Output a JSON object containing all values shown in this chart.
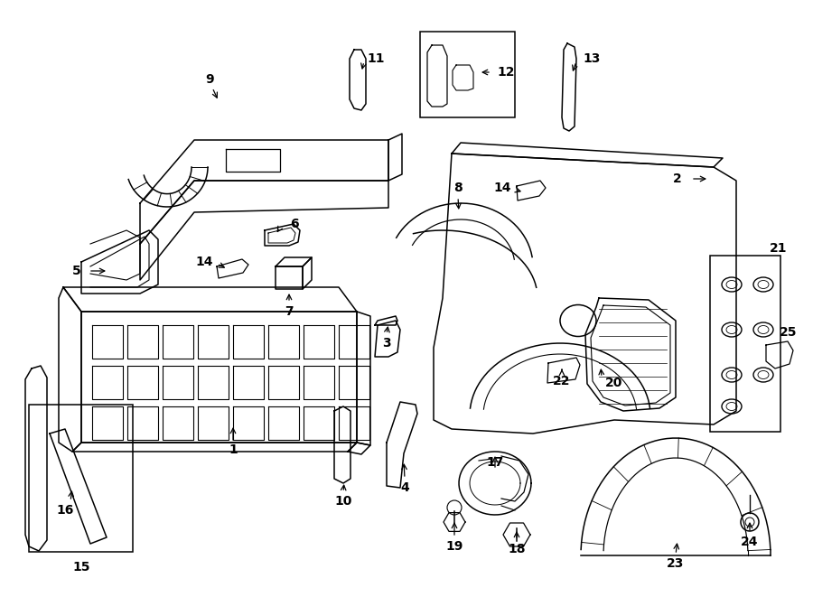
{
  "bg_color": "#ffffff",
  "line_color": "#000000",
  "fig_width": 9.0,
  "fig_height": 6.61,
  "dpi": 100,
  "lw": 1.1,
  "label_fs": 10
}
